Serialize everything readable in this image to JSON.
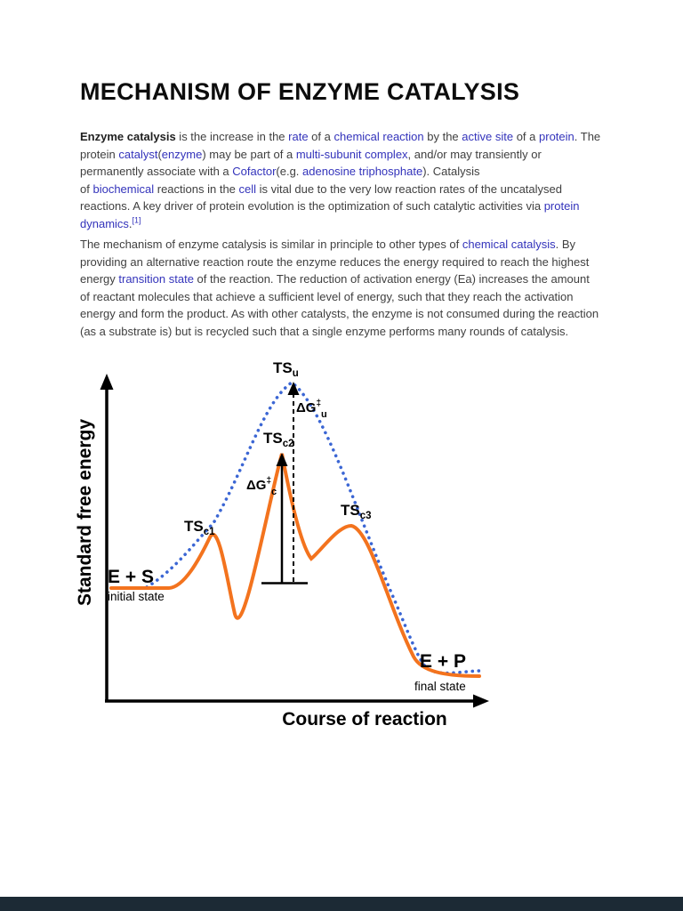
{
  "document": {
    "title": "MECHANISM OF ENZYME CATALYSIS",
    "paragraphs": [
      {
        "segments": [
          {
            "text": "Enzyme catalysis",
            "style": "bold"
          },
          {
            "text": " is the increase in the ",
            "style": "plain"
          },
          {
            "text": "rate",
            "style": "link"
          },
          {
            "text": " of a ",
            "style": "plain"
          },
          {
            "text": "chemical reaction",
            "style": "link"
          },
          {
            "text": " by the ",
            "style": "plain"
          },
          {
            "text": "active site",
            "style": "link"
          },
          {
            "text": " of a ",
            "style": "plain"
          },
          {
            "text": "protein",
            "style": "link"
          },
          {
            "text": ". The protein ",
            "style": "plain"
          },
          {
            "text": "catalyst",
            "style": "link"
          },
          {
            "text": "(",
            "style": "plain"
          },
          {
            "text": "enzyme",
            "style": "link"
          },
          {
            "text": ") may be part of a ",
            "style": "plain"
          },
          {
            "text": "multi-subunit complex",
            "style": "link"
          },
          {
            "text": ", and/or may transiently or permanently associate with a ",
            "style": "plain"
          },
          {
            "text": "Cofactor",
            "style": "link"
          },
          {
            "text": "(e.g. ",
            "style": "plain"
          },
          {
            "text": "adenosine triphosphate",
            "style": "link"
          },
          {
            "text": "). Catalysis",
            "style": "plain"
          },
          {
            "text": "",
            "style": "br"
          },
          {
            "text": "of ",
            "style": "plain"
          },
          {
            "text": "biochemical",
            "style": "link"
          },
          {
            "text": " reactions in the ",
            "style": "plain"
          },
          {
            "text": "cell",
            "style": "link"
          },
          {
            "text": " is vital due to the very low reaction rates of the uncatalysed reactions. A key driver of protein evolution is the optimization of such catalytic activities via ",
            "style": "plain"
          },
          {
            "text": "protein dynamics",
            "style": "link"
          },
          {
            "text": ".",
            "style": "plain"
          },
          {
            "text": "[1]",
            "style": "suplink"
          }
        ]
      },
      {
        "segments": [
          {
            "text": "The mechanism of enzyme catalysis is similar in principle to other types of ",
            "style": "plain"
          },
          {
            "text": "chemical catalysis",
            "style": "link"
          },
          {
            "text": ". By providing an alternative reaction route the enzyme reduces the energy required to reach the highest energy ",
            "style": "plain"
          },
          {
            "text": "transition state",
            "style": "link"
          },
          {
            "text": " of the reaction. The reduction of activation energy (Ea) increases the amount of reactant molecules that achieve a sufficient level of energy, such that they reach the activation energy and form the product. As with other catalysts, the enzyme is not consumed during the reaction (as a substrate is) but is recycled such that a single enzyme performs many rounds of catalysis.",
            "style": "plain"
          }
        ]
      }
    ]
  },
  "figure": {
    "y_axis_label": "Standard free energy",
    "x_axis_label": "Course of reaction",
    "labels": {
      "ts_u": {
        "base": "TS",
        "sub": "u"
      },
      "ts_c1": {
        "base": "TS",
        "sub": "c1"
      },
      "ts_c2": {
        "base": "TS",
        "sub": "c2"
      },
      "ts_c3": {
        "base": "TS",
        "sub": "c3"
      },
      "dg_u": {
        "base": "ΔG",
        "sup": "‡",
        "sub": "u"
      },
      "dg_c": {
        "base": "ΔG",
        "sup": "‡",
        "sub": "c"
      },
      "initial": {
        "state": "E + S",
        "caption": "initial state"
      },
      "final": {
        "state": "E + P",
        "caption": "final state"
      }
    },
    "colors": {
      "uncatalyzed_curve": "#3b66d4",
      "catalyzed_curve": "#f3731e",
      "axis": "#000000",
      "link": "#3333bb"
    }
  }
}
